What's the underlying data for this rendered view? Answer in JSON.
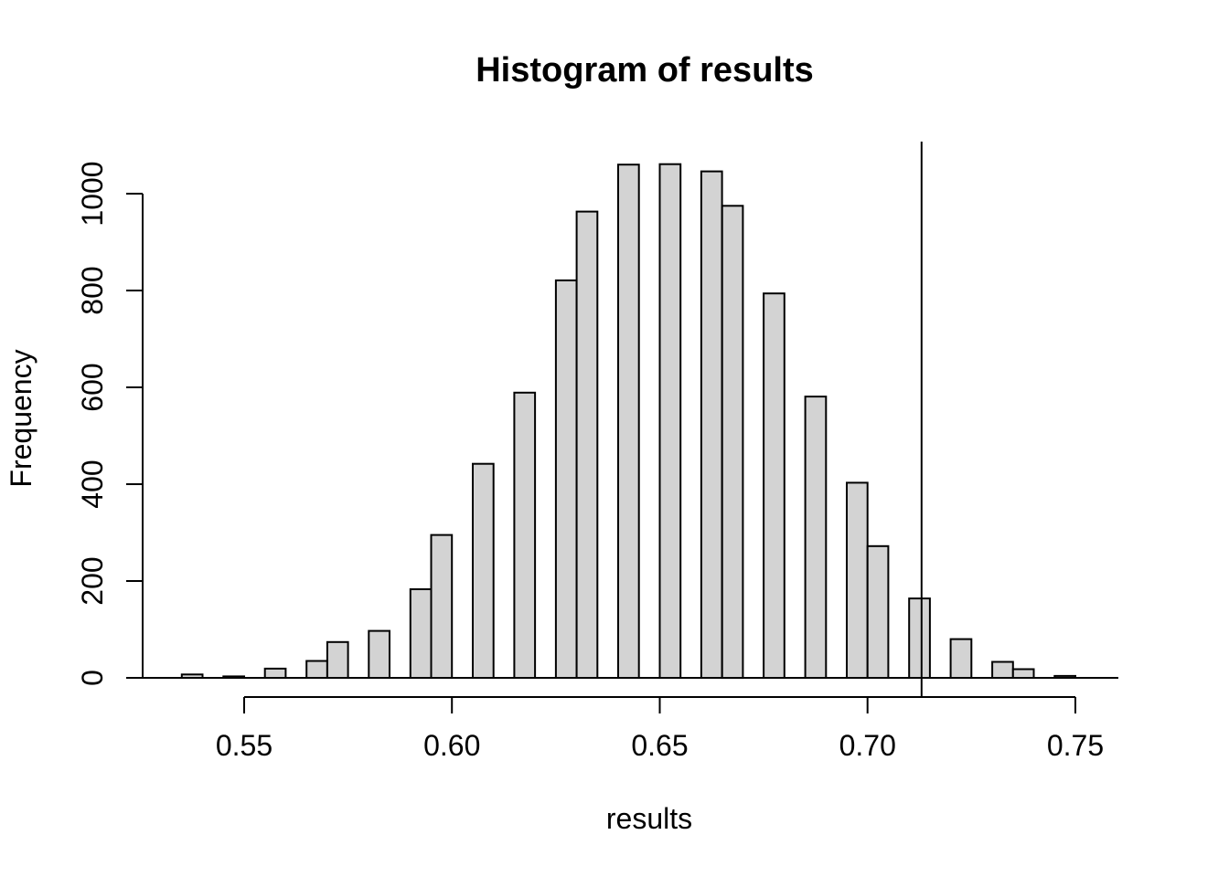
{
  "chart_data": {
    "type": "bar",
    "subtype": "histogram",
    "title": "Histogram of results",
    "xlabel": "results",
    "ylabel": "Frequency",
    "x_tick_labels": [
      "0.55",
      "0.60",
      "0.65",
      "0.70",
      "0.75"
    ],
    "x_tick_values": [
      0.55,
      0.6,
      0.65,
      0.7,
      0.75
    ],
    "y_tick_labels": [
      "0",
      "200",
      "400",
      "600",
      "800",
      "1000"
    ],
    "y_tick_values": [
      0,
      200,
      400,
      600,
      800,
      1000
    ],
    "xlim": [
      0.5335,
      0.7605
    ],
    "ylim": [
      0,
      1108
    ],
    "grid": false,
    "legend": false,
    "background": "#ffffff",
    "bar_fill": "#d3d3d3",
    "bar_stroke": "#000000",
    "axis_color": "#000000",
    "vline_x": 0.713,
    "bins": [
      {
        "x0": 0.535,
        "x1": 0.54,
        "count": 7
      },
      {
        "x0": 0.545,
        "x1": 0.55,
        "count": 3
      },
      {
        "x0": 0.555,
        "x1": 0.56,
        "count": 19
      },
      {
        "x0": 0.565,
        "x1": 0.57,
        "count": 35
      },
      {
        "x0": 0.57,
        "x1": 0.575,
        "count": 74
      },
      {
        "x0": 0.58,
        "x1": 0.585,
        "count": 97
      },
      {
        "x0": 0.59,
        "x1": 0.595,
        "count": 183
      },
      {
        "x0": 0.595,
        "x1": 0.6,
        "count": 295
      },
      {
        "x0": 0.605,
        "x1": 0.61,
        "count": 442
      },
      {
        "x0": 0.615,
        "x1": 0.62,
        "count": 589
      },
      {
        "x0": 0.625,
        "x1": 0.63,
        "count": 821
      },
      {
        "x0": 0.63,
        "x1": 0.635,
        "count": 963
      },
      {
        "x0": 0.64,
        "x1": 0.645,
        "count": 1060
      },
      {
        "x0": 0.65,
        "x1": 0.655,
        "count": 1061
      },
      {
        "x0": 0.66,
        "x1": 0.665,
        "count": 1046
      },
      {
        "x0": 0.665,
        "x1": 0.67,
        "count": 975
      },
      {
        "x0": 0.675,
        "x1": 0.68,
        "count": 794
      },
      {
        "x0": 0.685,
        "x1": 0.69,
        "count": 581
      },
      {
        "x0": 0.695,
        "x1": 0.7,
        "count": 403
      },
      {
        "x0": 0.7,
        "x1": 0.705,
        "count": 272
      },
      {
        "x0": 0.71,
        "x1": 0.715,
        "count": 164
      },
      {
        "x0": 0.72,
        "x1": 0.725,
        "count": 80
      },
      {
        "x0": 0.73,
        "x1": 0.735,
        "count": 33
      },
      {
        "x0": 0.735,
        "x1": 0.74,
        "count": 18
      },
      {
        "x0": 0.745,
        "x1": 0.75,
        "count": 4
      }
    ]
  }
}
